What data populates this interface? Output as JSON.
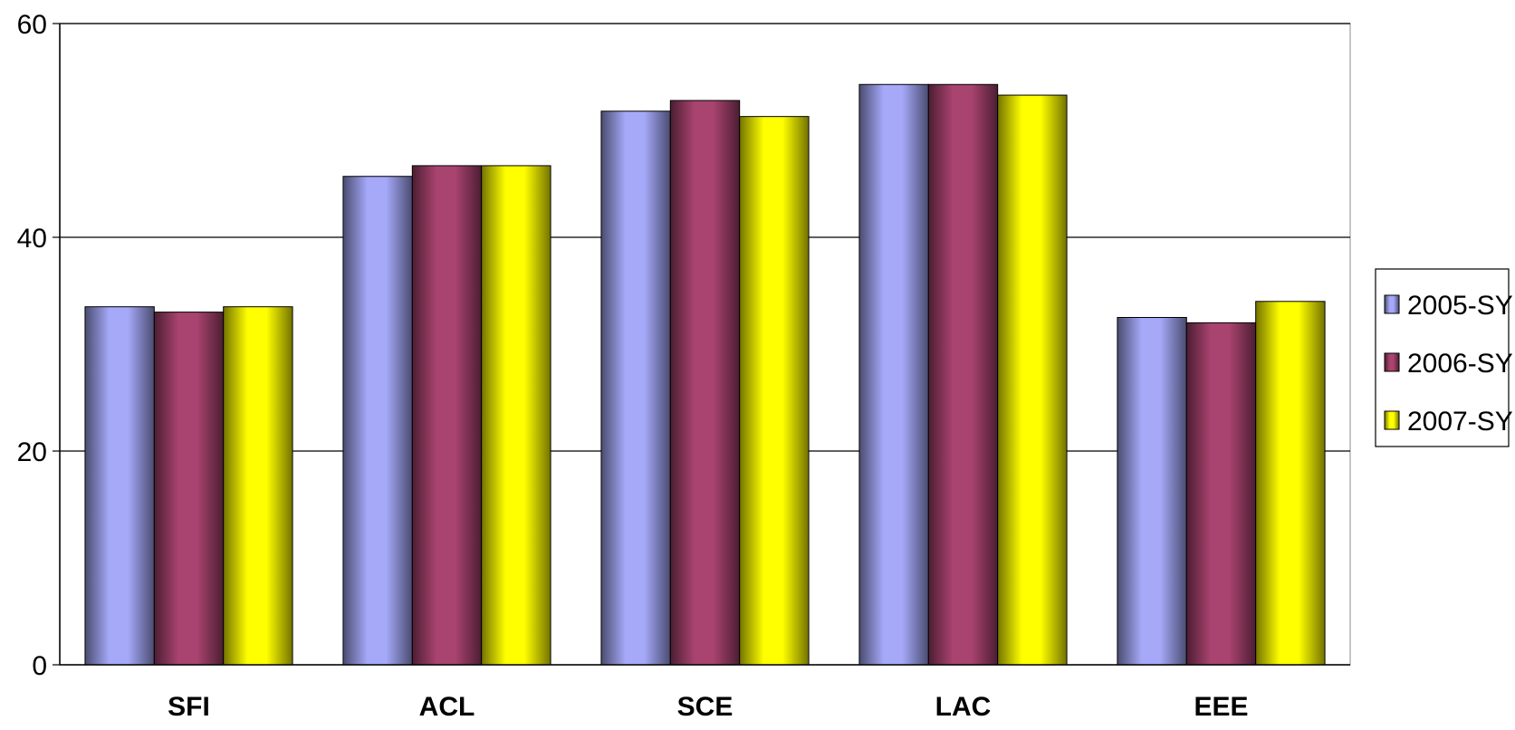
{
  "chart_data": {
    "type": "bar",
    "categories": [
      "SFI",
      "ACL",
      "SCE",
      "LAC",
      "EEE"
    ],
    "series": [
      {
        "name": "2005-SY",
        "values": [
          33.5,
          45.7,
          51.8,
          54.3,
          32.5
        ],
        "color": "#A5A9F8"
      },
      {
        "name": "2006-SY",
        "values": [
          33.0,
          46.7,
          52.8,
          54.3,
          32.0
        ],
        "color": "#A9436F"
      },
      {
        "name": "2007-SY",
        "values": [
          33.5,
          46.7,
          51.3,
          53.3,
          34.0
        ],
        "color": "#FFFF00"
      }
    ],
    "ylim": [
      0,
      60
    ],
    "yticks": [
      0,
      20,
      40,
      60
    ],
    "grid": true,
    "legend_position": "right"
  }
}
